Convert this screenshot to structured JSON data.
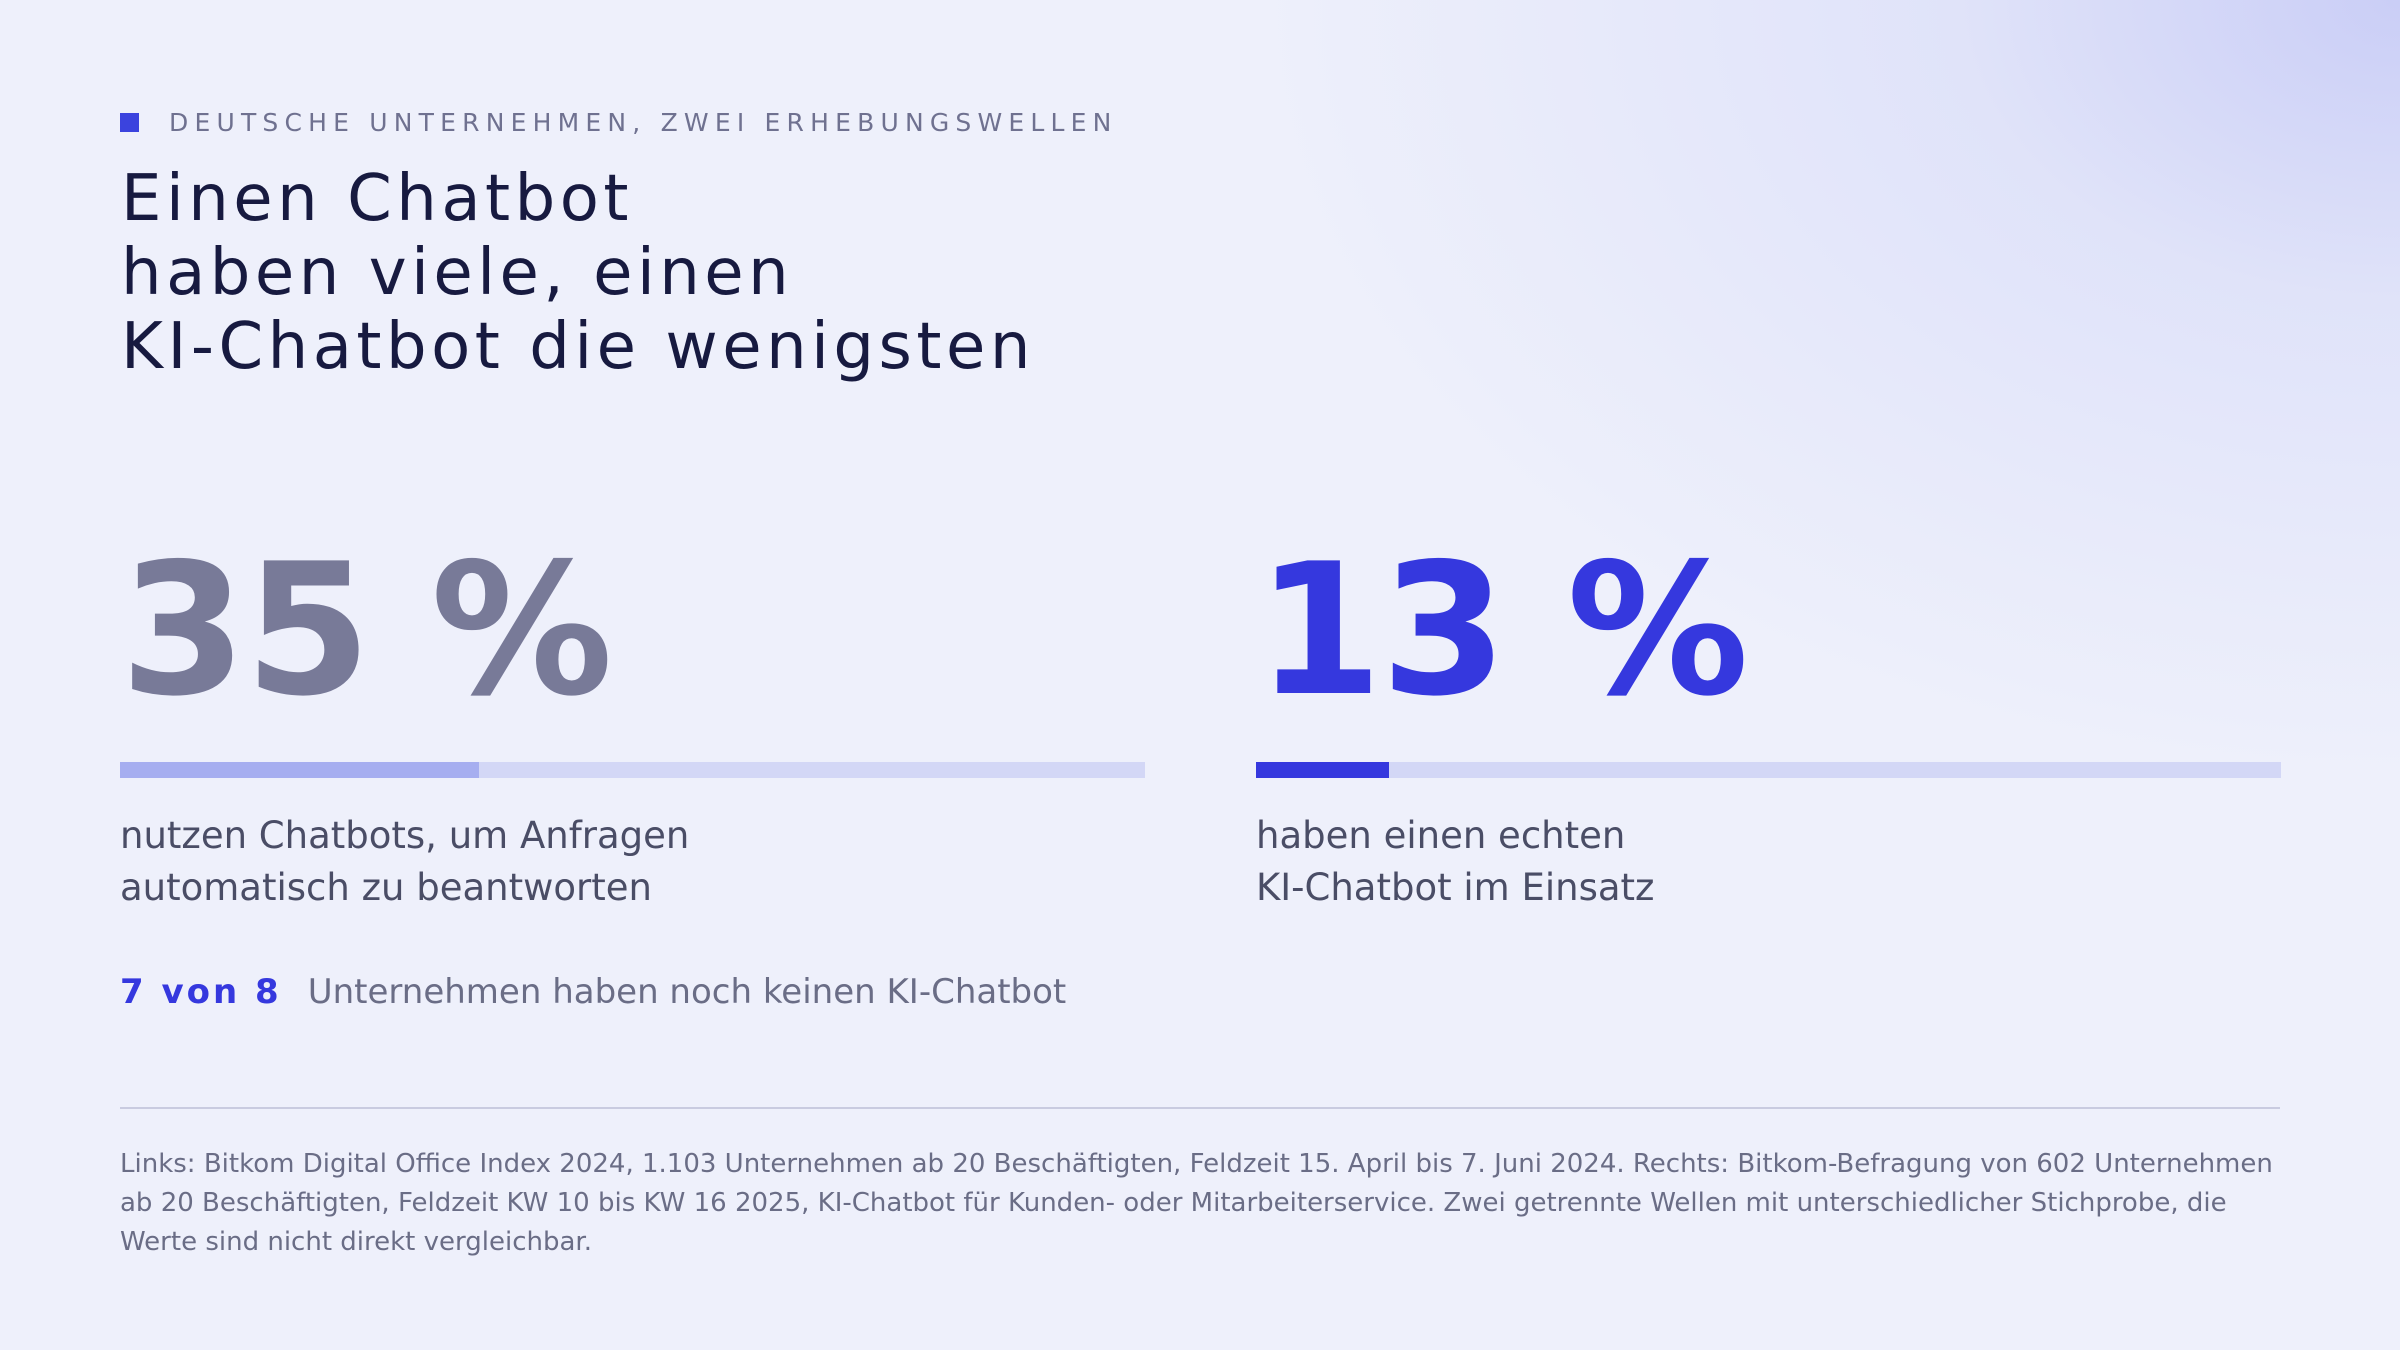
{
  "header": {
    "eyebrow": "DEUTSCHE UNTERNEHMEN, ZWEI ERHEBUNGSWELLEN",
    "title_lines": [
      "Einen Chatbot",
      "haben viele, einen",
      "KI-Chatbot die wenigsten"
    ]
  },
  "stats": [
    {
      "value_text": "35 %",
      "percent": 35,
      "description_lines": [
        "nutzen Chatbots, um Anfragen",
        "automatisch zu beantworten"
      ]
    },
    {
      "value_text": "13 %",
      "percent": 13,
      "description_lines": [
        "haben einen echten",
        "KI-Chatbot im Einsatz"
      ]
    }
  ],
  "note": {
    "ratio": "7 von 8",
    "text": "Unternehmen haben noch keinen KI-Chatbot"
  },
  "source": "Links: Bitkom Digital Office Index 2024, 1.103 Unternehmen ab 20 Beschäftigten, Feldzeit 15. April bis 7. Juni 2024. Rechts: Bitkom-Befragung von 602 Unternehmen ab 20 Beschäftigten, Feldzeit KW 10 bis KW 16 2025, KI-Chatbot für Kunden- oder Mitarbeiterservice. Zwei getrennte Wellen mit unterschiedlicher Stichprobe, die Werte sind nicht direkt vergleichbar.",
  "colors": {
    "accent": "#3538de",
    "muted_stat": "#787a98",
    "track": "#d3d7f6",
    "muted_fill": "#a6aef0",
    "title": "#171a40"
  }
}
